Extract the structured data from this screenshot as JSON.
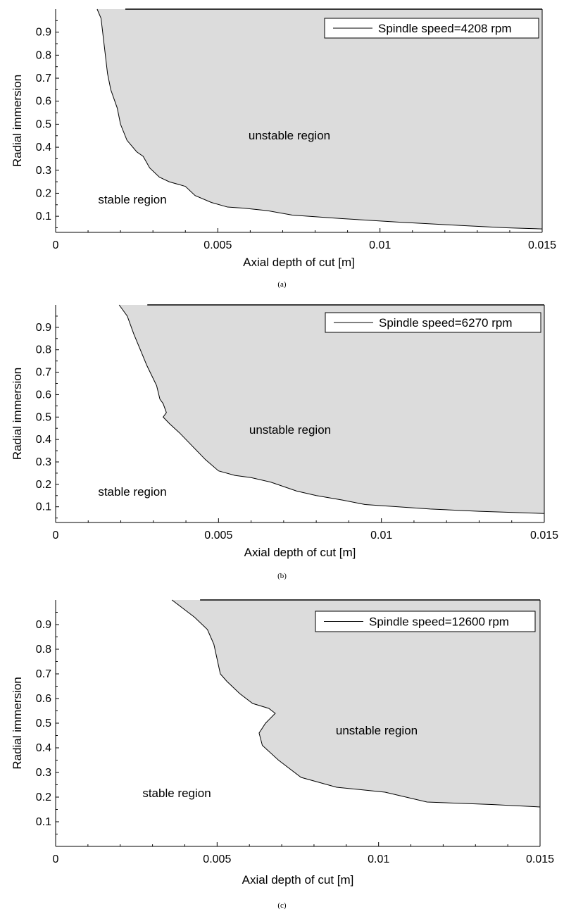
{
  "chart_data": [
    {
      "type": "area",
      "caption": "(a)",
      "xlabel": "Axial depth of cut [m]",
      "ylabel": "Radial immersion",
      "xlim": [
        0,
        0.015
      ],
      "ylim": [
        0.03,
        1.0
      ],
      "xticks": [
        "0",
        "0.005",
        "0.01",
        "0.015"
      ],
      "yticks": [
        "0.1",
        "0.2",
        "0.3",
        "0.4",
        "0.5",
        "0.6",
        "0.7",
        "0.8",
        "0.9"
      ],
      "legend": "Spindle speed=4208 rpm",
      "legend_position": "top-right",
      "series": [
        {
          "name": "Spindle speed=4208 rpm",
          "x": [
            0.00128,
            0.0014,
            0.0015,
            0.0016,
            0.0017,
            0.0019,
            0.002,
            0.0022,
            0.0025,
            0.0027,
            0.0029,
            0.0032,
            0.0035,
            0.004,
            0.0043,
            0.0048,
            0.0053,
            0.0058,
            0.0065,
            0.0073,
            0.0088,
            0.0105,
            0.0125,
            0.0139,
            0.015
          ],
          "y": [
            1.0,
            0.96,
            0.84,
            0.72,
            0.65,
            0.57,
            0.5,
            0.43,
            0.38,
            0.36,
            0.31,
            0.27,
            0.25,
            0.23,
            0.19,
            0.16,
            0.14,
            0.135,
            0.125,
            0.105,
            0.09,
            0.075,
            0.06,
            0.05,
            0.045
          ]
        }
      ],
      "annotations": {
        "unstable": "unstable region",
        "stable": "stable region"
      }
    },
    {
      "type": "area",
      "caption": "(b)",
      "xlabel": "Axial depth of cut [m]",
      "ylabel": "Radial immersion",
      "xlim": [
        0,
        0.015
      ],
      "ylim": [
        0.03,
        1.0
      ],
      "xticks": [
        "0",
        "0.005",
        "0.01",
        "0.015"
      ],
      "yticks": [
        "0.1",
        "0.2",
        "0.3",
        "0.4",
        "0.5",
        "0.6",
        "0.7",
        "0.8",
        "0.9"
      ],
      "legend": "Spindle speed=6270 rpm",
      "legend_position": "top-right",
      "series": [
        {
          "name": "Spindle speed=6270 rpm",
          "x": [
            0.00195,
            0.0022,
            0.0024,
            0.0026,
            0.0028,
            0.003,
            0.0031,
            0.0032,
            0.0033,
            0.0034,
            0.0033,
            0.0035,
            0.0038,
            0.0042,
            0.0046,
            0.005,
            0.0055,
            0.006,
            0.0066,
            0.0074,
            0.008,
            0.0088,
            0.0095,
            0.0115,
            0.013,
            0.015
          ],
          "y": [
            1.0,
            0.95,
            0.87,
            0.8,
            0.73,
            0.67,
            0.64,
            0.58,
            0.56,
            0.52,
            0.5,
            0.47,
            0.43,
            0.37,
            0.31,
            0.26,
            0.24,
            0.23,
            0.21,
            0.17,
            0.15,
            0.13,
            0.11,
            0.09,
            0.08,
            0.07
          ]
        }
      ],
      "annotations": {
        "unstable": "unstable region",
        "stable": "stable region"
      }
    },
    {
      "type": "area",
      "caption": "(c)",
      "xlabel": "Axial depth of cut [m]",
      "ylabel": "Radial immersion",
      "xlim": [
        0,
        0.015
      ],
      "ylim": [
        0.0,
        1.0
      ],
      "xticks": [
        "0",
        "0.005",
        "0.01",
        "0.015"
      ],
      "yticks": [
        "0.1",
        "0.2",
        "0.3",
        "0.4",
        "0.5",
        "0.6",
        "0.7",
        "0.8",
        "0.9"
      ],
      "legend": "Spindle speed=12600 rpm",
      "legend_position": "top-right",
      "series": [
        {
          "name": "Spindle speed=12600 rpm",
          "x": [
            0.0036,
            0.0039,
            0.0043,
            0.0047,
            0.0049,
            0.005,
            0.0051,
            0.0053,
            0.0057,
            0.0061,
            0.0066,
            0.0068,
            0.0065,
            0.0063,
            0.0064,
            0.0069,
            0.0076,
            0.0087,
            0.0102,
            0.0115,
            0.0135,
            0.015
          ],
          "y": [
            1.0,
            0.97,
            0.93,
            0.88,
            0.82,
            0.76,
            0.7,
            0.67,
            0.62,
            0.58,
            0.56,
            0.54,
            0.5,
            0.46,
            0.41,
            0.35,
            0.28,
            0.24,
            0.22,
            0.18,
            0.17,
            0.16
          ]
        }
      ],
      "annotations": {
        "unstable": "unstable region",
        "stable": "stable region"
      }
    }
  ]
}
